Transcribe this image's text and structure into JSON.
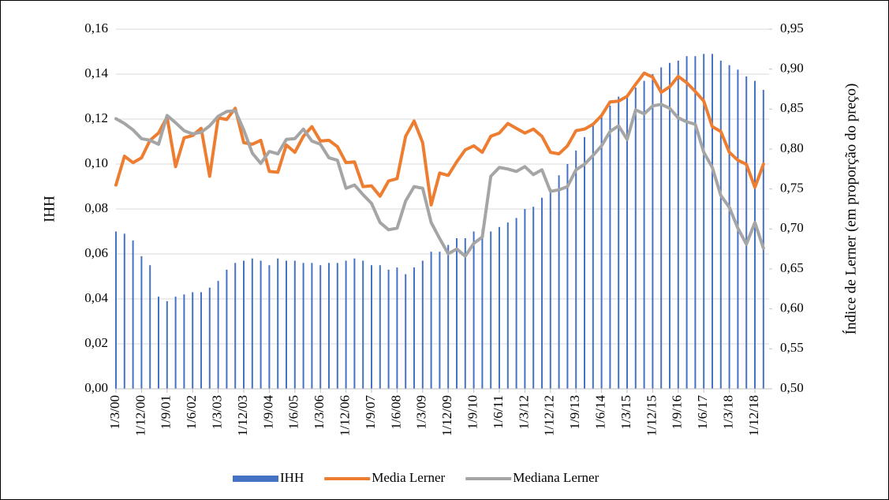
{
  "chart_data": {
    "type": "bar_line",
    "y_label": "IHH",
    "y2_label": "Índice de Lerner (em proporção do preço)",
    "categories": [
      "1/3/00",
      null,
      null,
      "1/12/00",
      null,
      null,
      "1/9/01",
      null,
      null,
      "1/6/02",
      null,
      null,
      "1/3/03",
      null,
      null,
      "1/12/03",
      null,
      null,
      "1/9/04",
      null,
      null,
      "1/6/05",
      null,
      null,
      "1/3/06",
      null,
      null,
      "1/12/06",
      null,
      null,
      "1/9/07",
      null,
      null,
      "1/6/08",
      null,
      null,
      "1/3/09",
      null,
      null,
      "1/12/09",
      null,
      null,
      "1/9/10",
      null,
      null,
      "1/6/11",
      null,
      null,
      "1/3/12",
      null,
      null,
      "1/12/12",
      null,
      null,
      "1/9/13",
      null,
      null,
      "1/6/14",
      null,
      null,
      "1/3/15",
      null,
      null,
      "1/12/15",
      null,
      null,
      "1/9/16",
      null,
      null,
      "1/6/17",
      null,
      null,
      "1/3/18",
      null,
      null,
      "1/12/18",
      null
    ],
    "series": [
      {
        "name": "IHH",
        "kind": "bar",
        "color": "#4472c4",
        "values": [
          0.07,
          0.069,
          0.066,
          0.059,
          0.055,
          0.041,
          0.039,
          0.041,
          0.042,
          0.043,
          0.043,
          0.045,
          0.048,
          0.053,
          0.056,
          0.057,
          0.058,
          0.057,
          0.055,
          0.058,
          0.057,
          0.057,
          0.056,
          0.056,
          0.055,
          0.056,
          0.056,
          0.057,
          0.058,
          0.057,
          0.055,
          0.055,
          0.053,
          0.054,
          0.051,
          0.054,
          0.057,
          0.061,
          0.061,
          0.064,
          0.067,
          0.067,
          0.07,
          0.071,
          0.07,
          0.072,
          0.074,
          0.076,
          0.08,
          0.081,
          0.085,
          0.089,
          0.095,
          0.1,
          0.106,
          0.112,
          0.118,
          0.121,
          0.126,
          0.13,
          0.131,
          0.134,
          0.137,
          0.14,
          0.143,
          0.145,
          0.146,
          0.148,
          0.148,
          0.149,
          0.149,
          0.146,
          0.144,
          0.142,
          0.139,
          0.137,
          0.133
        ]
      },
      {
        "name": "Media Lerner",
        "kind": "line",
        "axis": "y2",
        "color": "#ed7d31",
        "values": [
          0.755,
          0.791,
          0.783,
          0.789,
          0.811,
          0.82,
          0.84,
          0.778,
          0.814,
          0.817,
          0.826,
          0.766,
          0.839,
          0.837,
          0.851,
          0.808,
          0.806,
          0.811,
          0.772,
          0.771,
          0.805,
          0.796,
          0.816,
          0.828,
          0.81,
          0.811,
          0.803,
          0.783,
          0.784,
          0.753,
          0.754,
          0.741,
          0.76,
          0.763,
          0.816,
          0.835,
          0.808,
          0.73,
          0.77,
          0.767,
          0.784,
          0.799,
          0.804,
          0.796,
          0.816,
          0.82,
          0.832,
          0.826,
          0.82,
          0.825,
          0.816,
          0.796,
          0.794,
          0.804,
          0.823,
          0.825,
          0.831,
          0.842,
          0.859,
          0.86,
          0.866,
          0.881,
          0.895,
          0.89,
          0.871,
          0.878,
          0.891,
          0.883,
          0.872,
          0.86,
          0.828,
          0.822,
          0.796,
          0.786,
          0.781,
          0.752,
          0.781
        ]
      },
      {
        "name": "Mediana Lerner",
        "kind": "line",
        "axis": "y2",
        "color": "#a5a5a5",
        "values": [
          0.838,
          0.832,
          0.824,
          0.813,
          0.811,
          0.806,
          0.842,
          0.833,
          0.823,
          0.819,
          0.821,
          0.829,
          0.841,
          0.847,
          0.848,
          0.824,
          0.795,
          0.782,
          0.797,
          0.794,
          0.812,
          0.813,
          0.825,
          0.81,
          0.806,
          0.789,
          0.786,
          0.751,
          0.755,
          0.743,
          0.732,
          0.708,
          0.699,
          0.701,
          0.735,
          0.753,
          0.751,
          0.708,
          0.688,
          0.669,
          0.675,
          0.666,
          0.682,
          0.69,
          0.766,
          0.777,
          0.775,
          0.772,
          0.778,
          0.768,
          0.774,
          0.747,
          0.749,
          0.753,
          0.774,
          0.781,
          0.792,
          0.804,
          0.822,
          0.829,
          0.812,
          0.849,
          0.844,
          0.854,
          0.856,
          0.851,
          0.839,
          0.834,
          0.831,
          0.796,
          0.777,
          0.742,
          0.727,
          0.701,
          0.681,
          0.708,
          0.676
        ]
      }
    ],
    "ylim": [
      0,
      0.16
    ],
    "yticks": [
      {
        "value": 0,
        "label": "0,00"
      },
      {
        "value": 0.02,
        "label": "0,02"
      },
      {
        "value": 0.04,
        "label": "0,04"
      },
      {
        "value": 0.06,
        "label": "0,06"
      },
      {
        "value": 0.08,
        "label": "0,08"
      },
      {
        "value": 0.1,
        "label": "0,10"
      },
      {
        "value": 0.12,
        "label": "0,12"
      },
      {
        "value": 0.14,
        "label": "0,14"
      },
      {
        "value": 0.16,
        "label": "0,16"
      }
    ],
    "y2lim": [
      0.5,
      0.95
    ],
    "y2ticks": [
      {
        "value": 0.5,
        "label": "0,50"
      },
      {
        "value": 0.55,
        "label": "0,55"
      },
      {
        "value": 0.6,
        "label": "0,60"
      },
      {
        "value": 0.65,
        "label": "0,65"
      },
      {
        "value": 0.7,
        "label": "0,70"
      },
      {
        "value": 0.75,
        "label": "0,75"
      },
      {
        "value": 0.8,
        "label": "0,80"
      },
      {
        "value": 0.85,
        "label": "0,85"
      },
      {
        "value": 0.9,
        "label": "0,90"
      },
      {
        "value": 0.95,
        "label": "0,95"
      }
    ],
    "grid": true,
    "legend": "bottom"
  }
}
